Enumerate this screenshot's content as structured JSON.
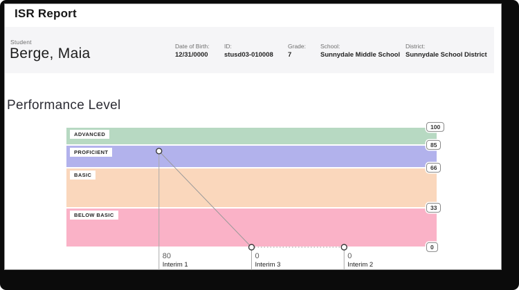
{
  "window": {
    "title": "ISR Report"
  },
  "student": {
    "label": "Student",
    "name": "Berge, Maia",
    "fields": [
      {
        "label": "Date of Birth:",
        "value": "12/31/0000"
      },
      {
        "label": "ID:",
        "value": "stusd03-010008"
      },
      {
        "label": "Grade:",
        "value": "7"
      },
      {
        "label": "School:",
        "value": "Sunnydale Middle School"
      },
      {
        "label": "District:",
        "value": "Sunnydale School District"
      }
    ]
  },
  "section_title": "Performance Level",
  "chart_data": {
    "type": "line",
    "title": "Performance Level",
    "categories": [
      "Interim 1",
      "Interim 3",
      "Interim 2"
    ],
    "values": [
      80,
      0,
      0
    ],
    "xlabel": "",
    "ylabel": "",
    "ylim": [
      0,
      100
    ],
    "yticks": [
      100,
      85,
      66,
      33,
      0
    ],
    "grid": false,
    "legend": false,
    "bands": [
      {
        "label": "ADVANCED",
        "from": 85,
        "to": 100,
        "color": "#b7d9c2"
      },
      {
        "label": "PROFICIENT",
        "from": 66,
        "to": 85,
        "color": "#b2b2ec"
      },
      {
        "label": "BASIC",
        "from": 33,
        "to": 66,
        "color": "#fad7bc"
      },
      {
        "label": "BELOW BASIC",
        "from": 0,
        "to": 33,
        "color": "#fab2c7"
      }
    ],
    "segments": [
      {
        "from": 0,
        "to": 1,
        "style": "solid"
      },
      {
        "from": 1,
        "to": 2,
        "style": "dotted"
      }
    ],
    "line_color": "#999999",
    "drop_line_color": "#a9a9a9",
    "point_fill": "#ffffff",
    "point_stroke": "#3a3a3a"
  }
}
